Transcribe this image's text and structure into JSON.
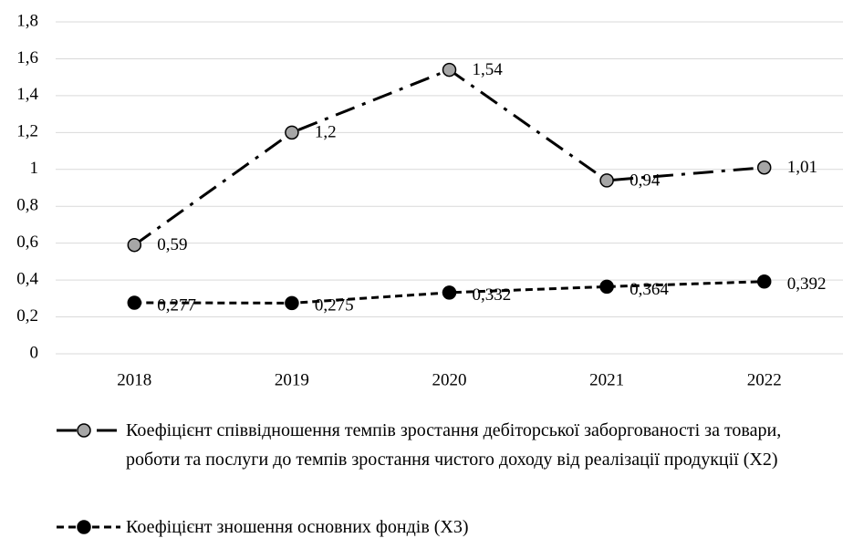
{
  "chart_data": {
    "type": "line",
    "categories": [
      "2018",
      "2019",
      "2020",
      "2021",
      "2022"
    ],
    "series": [
      {
        "name": "Коефіцієнт співвідношення темпів зростання дебіторської заборгованості за товари, роботи та послуги до темпів зростання чистого доходу від реалізації продукції   (Х2)",
        "color": "#000000",
        "marker_color": "#a6a6a6",
        "dash": "dashdot",
        "values": [
          0.59,
          1.2,
          1.54,
          0.94,
          1.01
        ],
        "value_labels": [
          "0,59",
          "1,2",
          "1,54",
          "0,94",
          "1,01"
        ]
      },
      {
        "name": "Коефіцієнт зношення основних фондів   (Х3)",
        "color": "#000000",
        "marker_color": "#000000",
        "dash": "dashed",
        "values": [
          0.277,
          0.275,
          0.332,
          0.364,
          0.392
        ],
        "value_labels": [
          "0,277",
          "0,275",
          "0,332",
          "0,364",
          "0,392"
        ]
      }
    ],
    "ylim": [
      0,
      1.8
    ],
    "yticks": [
      0,
      {
        "value": 0.2,
        "label": "0,2"
      },
      {
        "value": 0.4,
        "label": "0,4"
      },
      {
        "value": 0.6,
        "label": "0,6"
      },
      {
        "value": 0.8,
        "label": "0,8"
      },
      1,
      {
        "value": 1.2,
        "label": "1,2"
      },
      {
        "value": 1.4,
        "label": "1,4"
      },
      {
        "value": 1.6,
        "label": "1,6"
      },
      {
        "value": 1.8,
        "label": "1,8"
      }
    ],
    "grid": true,
    "grid_color": "#d9d9d9",
    "legend": "bottom"
  }
}
